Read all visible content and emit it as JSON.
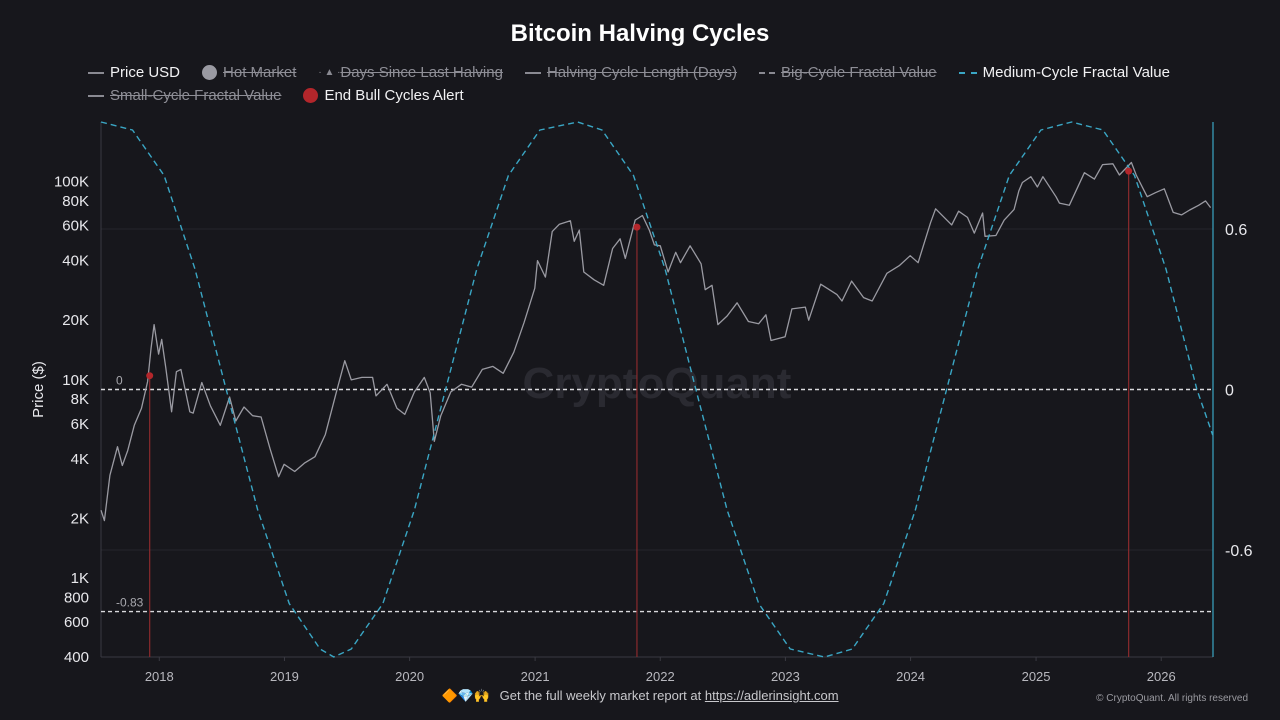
{
  "chart_data": {
    "type": "line",
    "title": "Bitcoin Halving Cycles",
    "watermark": "CryptoQuant",
    "ylabel": "Price ($)",
    "y_scale": "log",
    "ylim": [
      400,
      200000
    ],
    "y_ticks": [
      {
        "value": 400,
        "label": "400"
      },
      {
        "value": 600,
        "label": "600"
      },
      {
        "value": 800,
        "label": "800"
      },
      {
        "value": 1000,
        "label": "1K"
      },
      {
        "value": 2000,
        "label": "2K"
      },
      {
        "value": 4000,
        "label": "4K"
      },
      {
        "value": 6000,
        "label": "6K"
      },
      {
        "value": 8000,
        "label": "8K"
      },
      {
        "value": 10000,
        "label": "10K"
      },
      {
        "value": 20000,
        "label": "20K"
      },
      {
        "value": 40000,
        "label": "40K"
      },
      {
        "value": 60000,
        "label": "60K"
      },
      {
        "value": 80000,
        "label": "80K"
      },
      {
        "value": 100000,
        "label": "100K"
      }
    ],
    "y2lim": [
      -1.0,
      1.0
    ],
    "y2_ticks": [
      {
        "value": 0.6,
        "label": "0.6"
      },
      {
        "value": 0,
        "label": "0"
      },
      {
        "value": -0.6,
        "label": "-0.6"
      }
    ],
    "xlim": [
      "2017-07-15",
      "2026-06-01"
    ],
    "x_ticks": [
      "2018",
      "2019",
      "2020",
      "2021",
      "2022",
      "2023",
      "2024",
      "2025",
      "2026"
    ],
    "reference_lines": [
      {
        "value": 0,
        "label": "0"
      },
      {
        "value": -0.83,
        "label": "-0.83"
      }
    ],
    "legend": [
      {
        "name": "Price USD",
        "symbol": "line",
        "active": true
      },
      {
        "name": "Hot Market",
        "symbol": "dot-gray",
        "active": false
      },
      {
        "name": "Days Since Last Halving",
        "symbol": "triangle",
        "active": false
      },
      {
        "name": "Halving Cycle Length (Days)",
        "symbol": "line",
        "active": false
      },
      {
        "name": "Big-Cycle Fractal Value",
        "symbol": "dash",
        "active": false
      },
      {
        "name": "Medium-Cycle Fractal Value",
        "symbol": "dash-blue",
        "active": true
      },
      {
        "name": "Small-Cycle Fractal Value",
        "symbol": "line",
        "active": false
      },
      {
        "name": "End Bull Cycles Alert",
        "symbol": "dot-red",
        "active": true
      }
    ],
    "series": [
      {
        "name": "Price USD",
        "axis": "left",
        "color": "#9a9aa2",
        "points": [
          [
            "2017-07-15",
            2200
          ],
          [
            "2017-07-25",
            1950
          ],
          [
            "2017-08-10",
            3300
          ],
          [
            "2017-09-01",
            4600
          ],
          [
            "2017-09-15",
            3700
          ],
          [
            "2017-10-01",
            4400
          ],
          [
            "2017-10-20",
            5900
          ],
          [
            "2017-11-10",
            7200
          ],
          [
            "2017-11-28",
            9800
          ],
          [
            "2017-12-08",
            14500
          ],
          [
            "2017-12-17",
            19000
          ],
          [
            "2017-12-30",
            13500
          ],
          [
            "2018-01-08",
            16000
          ],
          [
            "2018-01-20",
            11500
          ],
          [
            "2018-02-06",
            6900
          ],
          [
            "2018-02-20",
            11000
          ],
          [
            "2018-03-05",
            11300
          ],
          [
            "2018-03-31",
            6900
          ],
          [
            "2018-04-10",
            6800
          ],
          [
            "2018-05-05",
            9700
          ],
          [
            "2018-05-30",
            7400
          ],
          [
            "2018-06-28",
            5900
          ],
          [
            "2018-07-25",
            8200
          ],
          [
            "2018-08-12",
            6200
          ],
          [
            "2018-09-05",
            7300
          ],
          [
            "2018-09-30",
            6600
          ],
          [
            "2018-10-25",
            6500
          ],
          [
            "2018-11-20",
            4500
          ],
          [
            "2018-12-15",
            3250
          ],
          [
            "2018-12-31",
            3750
          ],
          [
            "2019-01-31",
            3450
          ],
          [
            "2019-02-28",
            3800
          ],
          [
            "2019-03-31",
            4100
          ],
          [
            "2019-04-30",
            5300
          ],
          [
            "2019-05-31",
            8500
          ],
          [
            "2019-06-26",
            12500
          ],
          [
            "2019-07-15",
            10000
          ],
          [
            "2019-08-15",
            10300
          ],
          [
            "2019-09-15",
            10300
          ],
          [
            "2019-09-25",
            8300
          ],
          [
            "2019-10-27",
            9500
          ],
          [
            "2019-11-25",
            7200
          ],
          [
            "2019-12-18",
            6700
          ],
          [
            "2020-01-15",
            8700
          ],
          [
            "2020-02-13",
            10300
          ],
          [
            "2020-03-01",
            8600
          ],
          [
            "2020-03-13",
            4900
          ],
          [
            "2020-04-01",
            6600
          ],
          [
            "2020-04-30",
            8700
          ],
          [
            "2020-05-31",
            9500
          ],
          [
            "2020-06-30",
            9200
          ],
          [
            "2020-07-31",
            11300
          ],
          [
            "2020-08-31",
            11700
          ],
          [
            "2020-09-30",
            10800
          ],
          [
            "2020-10-31",
            13800
          ],
          [
            "2020-11-30",
            19500
          ],
          [
            "2020-12-31",
            29000
          ],
          [
            "2021-01-08",
            40000
          ],
          [
            "2021-01-31",
            33000
          ],
          [
            "2021-02-20",
            56000
          ],
          [
            "2021-03-13",
            61000
          ],
          [
            "2021-04-14",
            63500
          ],
          [
            "2021-04-25",
            50000
          ],
          [
            "2021-05-10",
            57000
          ],
          [
            "2021-05-23",
            35000
          ],
          [
            "2021-06-22",
            32000
          ],
          [
            "2021-07-20",
            30000
          ],
          [
            "2021-08-15",
            46000
          ],
          [
            "2021-09-06",
            51500
          ],
          [
            "2021-09-21",
            41000
          ],
          [
            "2021-10-20",
            64000
          ],
          [
            "2021-11-10",
            67500
          ],
          [
            "2021-11-30",
            57000
          ],
          [
            "2021-12-15",
            48000
          ],
          [
            "2022-01-01",
            47500
          ],
          [
            "2022-01-24",
            35000
          ],
          [
            "2022-02-15",
            44000
          ],
          [
            "2022-03-01",
            39000
          ],
          [
            "2022-03-29",
            47500
          ],
          [
            "2022-04-30",
            38500
          ],
          [
            "2022-05-12",
            28500
          ],
          [
            "2022-06-01",
            30000
          ],
          [
            "2022-06-18",
            19000
          ],
          [
            "2022-07-15",
            21000
          ],
          [
            "2022-08-13",
            24500
          ],
          [
            "2022-09-15",
            19700
          ],
          [
            "2022-10-15",
            19200
          ],
          [
            "2022-11-05",
            21300
          ],
          [
            "2022-11-20",
            15800
          ],
          [
            "2022-12-31",
            16500
          ],
          [
            "2023-01-20",
            22800
          ],
          [
            "2023-02-28",
            23300
          ],
          [
            "2023-03-10",
            20000
          ],
          [
            "2023-04-14",
            30400
          ],
          [
            "2023-05-31",
            27000
          ],
          [
            "2023-06-15",
            25000
          ],
          [
            "2023-07-13",
            31500
          ],
          [
            "2023-08-17",
            26000
          ],
          [
            "2023-09-11",
            25000
          ],
          [
            "2023-10-24",
            34500
          ],
          [
            "2023-11-30",
            37800
          ],
          [
            "2023-12-31",
            42300
          ],
          [
            "2024-01-23",
            39000
          ],
          [
            "2024-02-28",
            62000
          ],
          [
            "2024-03-14",
            73000
          ],
          [
            "2024-04-30",
            60500
          ],
          [
            "2024-05-20",
            71000
          ],
          [
            "2024-06-15",
            66000
          ],
          [
            "2024-07-05",
            55000
          ],
          [
            "2024-07-29",
            69500
          ],
          [
            "2024-08-05",
            53000
          ],
          [
            "2024-09-06",
            53500
          ],
          [
            "2024-09-30",
            64000
          ],
          [
            "2024-10-29",
            72500
          ],
          [
            "2024-11-12",
            90000
          ],
          [
            "2024-11-22",
            99000
          ],
          [
            "2024-12-17",
            106000
          ],
          [
            "2025-01-05",
            94000
          ],
          [
            "2025-01-21",
            106000
          ],
          [
            "2025-02-28",
            84000
          ],
          [
            "2025-03-10",
            78000
          ],
          [
            "2025-04-08",
            76000
          ],
          [
            "2025-05-22",
            111000
          ],
          [
            "2025-06-20",
            103000
          ],
          [
            "2025-07-14",
            122000
          ],
          [
            "2025-08-13",
            123000
          ],
          [
            "2025-09-01",
            108000
          ],
          [
            "2025-10-06",
            125000
          ],
          [
            "2025-10-20",
            108000
          ],
          [
            "2025-11-21",
            84000
          ],
          [
            "2025-12-15",
            88000
          ],
          [
            "2026-01-10",
            92000
          ],
          [
            "2026-02-05",
            70000
          ],
          [
            "2026-03-01",
            68000
          ],
          [
            "2026-03-25",
            72000
          ],
          [
            "2026-04-20",
            76000
          ],
          [
            "2026-05-10",
            80000
          ],
          [
            "2026-05-25",
            74000
          ]
        ]
      },
      {
        "name": "Medium-Cycle Fractal Value",
        "axis": "right",
        "color": "#3aa6c4",
        "style": "dashed",
        "points": [
          [
            "2017-07-15",
            1.0
          ],
          [
            "2017-10-15",
            0.97
          ],
          [
            "2018-01-15",
            0.8
          ],
          [
            "2018-04-15",
            0.45
          ],
          [
            "2018-07-15",
            0.0
          ],
          [
            "2018-10-15",
            -0.45
          ],
          [
            "2019-01-15",
            -0.8
          ],
          [
            "2019-04-15",
            -0.97
          ],
          [
            "2019-05-25",
            -1.0
          ],
          [
            "2019-07-15",
            -0.97
          ],
          [
            "2019-10-15",
            -0.8
          ],
          [
            "2020-01-15",
            -0.45
          ],
          [
            "2020-04-15",
            0.0
          ],
          [
            "2020-07-15",
            0.45
          ],
          [
            "2020-10-15",
            0.8
          ],
          [
            "2021-01-15",
            0.97
          ],
          [
            "2021-05-05",
            1.0
          ],
          [
            "2021-07-15",
            0.97
          ],
          [
            "2021-10-15",
            0.8
          ],
          [
            "2022-01-15",
            0.45
          ],
          [
            "2022-04-15",
            0.0
          ],
          [
            "2022-07-15",
            -0.45
          ],
          [
            "2022-10-15",
            -0.8
          ],
          [
            "2023-01-15",
            -0.97
          ],
          [
            "2023-04-25",
            -1.0
          ],
          [
            "2023-07-15",
            -0.97
          ],
          [
            "2023-10-15",
            -0.8
          ],
          [
            "2024-01-15",
            -0.45
          ],
          [
            "2024-04-15",
            0.0
          ],
          [
            "2024-07-15",
            0.45
          ],
          [
            "2024-10-15",
            0.8
          ],
          [
            "2025-01-15",
            0.97
          ],
          [
            "2025-04-15",
            1.0
          ],
          [
            "2025-07-15",
            0.97
          ],
          [
            "2025-10-15",
            0.8
          ],
          [
            "2026-01-15",
            0.45
          ],
          [
            "2026-04-15",
            0.0
          ],
          [
            "2026-05-31",
            -0.17
          ]
        ]
      }
    ],
    "alerts": [
      {
        "name": "End Bull Cycles Alert",
        "date": "2017-12-04",
        "value": 10500
      },
      {
        "name": "End Bull Cycles Alert",
        "date": "2021-10-25",
        "value": 59000
      },
      {
        "name": "End Bull Cycles Alert",
        "date": "2025-09-28",
        "value": 113000
      }
    ]
  },
  "footer": {
    "emoji": "🔶💎🙌",
    "text": "Get the full weekly market report at",
    "link_text": "https://adlerinsight.com"
  },
  "copyright": "© CryptoQuant. All rights reserved",
  "colors": {
    "background": "#17171c",
    "price_line": "#9a9aa2",
    "fractal_line": "#3aa6c4",
    "alert": "#b3262b",
    "reference": "#d9d9dd"
  }
}
